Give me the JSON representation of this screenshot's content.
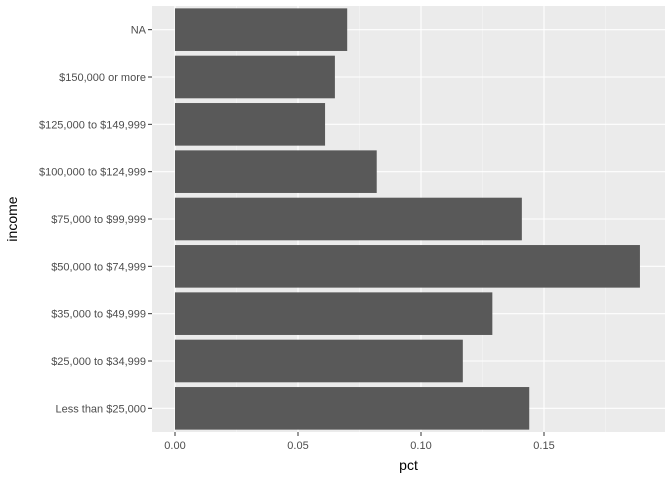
{
  "chart_data": {
    "type": "bar",
    "orientation": "horizontal",
    "title": "",
    "xlabel": "pct",
    "ylabel": "income",
    "xlim": [
      0,
      0.19
    ],
    "x_ticks": [
      0.0,
      0.05,
      0.1,
      0.15
    ],
    "x_tick_labels": [
      "0.00",
      "0.05",
      "0.10",
      "0.15"
    ],
    "grid": true,
    "categories": [
      "Less than $25,000",
      "$25,000 to $34,999",
      "$35,000 to $49,999",
      "$50,000 to $74,999",
      "$75,000 to $99,999",
      "$100,000 to $124,999",
      "$125,000 to $149,999",
      "$150,000 or more",
      "NA"
    ],
    "values": [
      0.144,
      0.117,
      0.129,
      0.189,
      0.141,
      0.082,
      0.061,
      0.065,
      0.07
    ],
    "colors": {
      "panel_background": "#ebebeb",
      "grid_major": "#ffffff",
      "grid_minor": "#f5f5f5",
      "bar_fill": "#595959",
      "tick_text": "#4d4d4d",
      "tick_mark": "#333333",
      "axis_title": "#000000"
    }
  }
}
